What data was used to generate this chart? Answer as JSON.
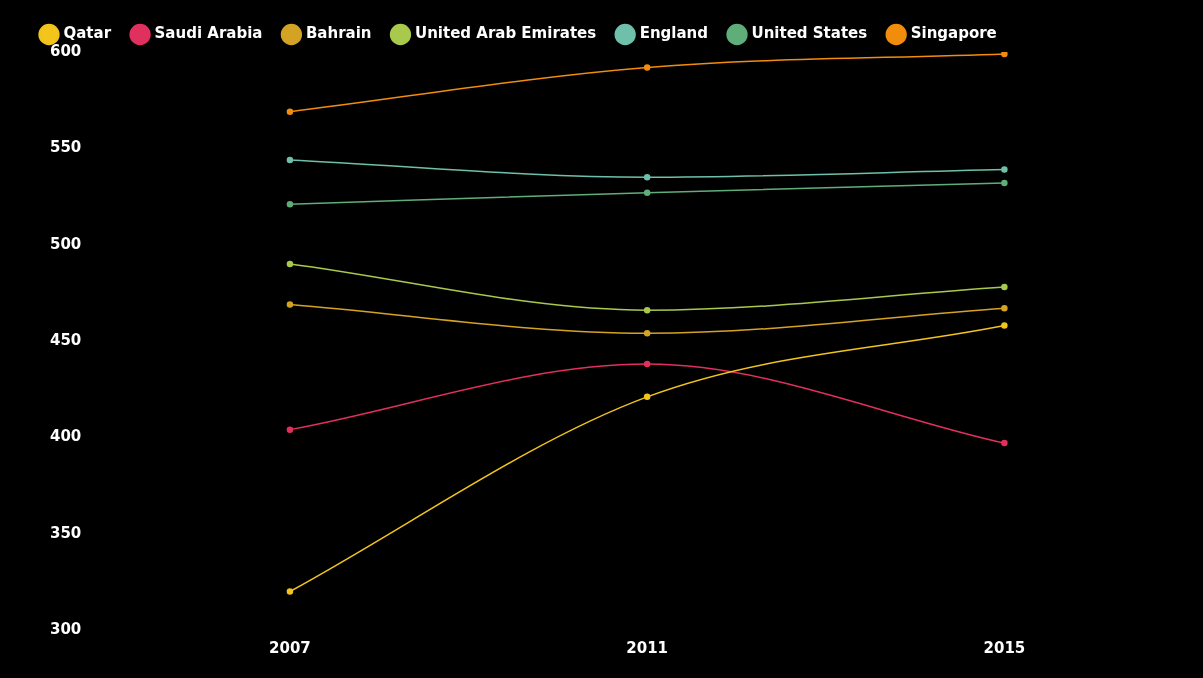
{
  "chart_data": {
    "type": "line",
    "categories": [
      "2007",
      "2011",
      "2015"
    ],
    "series": [
      {
        "name": "Qatar",
        "color": "#f2c41c",
        "values": [
          320,
          421,
          458
        ]
      },
      {
        "name": "Saudi Arabia",
        "color": "#e0305e",
        "values": [
          404,
          438,
          397
        ]
      },
      {
        "name": "Bahrain",
        "color": "#d4a323",
        "values": [
          469,
          454,
          467
        ]
      },
      {
        "name": "United Arab Emirates",
        "color": "#a9c94c",
        "values": [
          490,
          466,
          478
        ]
      },
      {
        "name": "England",
        "color": "#6fc0aa",
        "values": [
          544,
          535,
          539
        ]
      },
      {
        "name": "United States",
        "color": "#5fae7a",
        "values": [
          521,
          527,
          532
        ]
      },
      {
        "name": "Singapore",
        "color": "#f28c0c",
        "values": [
          569,
          592,
          599
        ]
      }
    ],
    "ylim": [
      300,
      600
    ],
    "yticks": [
      300,
      350,
      400,
      450,
      500,
      550,
      600
    ],
    "grid": false,
    "legend": "top",
    "marker": "circle",
    "line_style": "solid"
  }
}
